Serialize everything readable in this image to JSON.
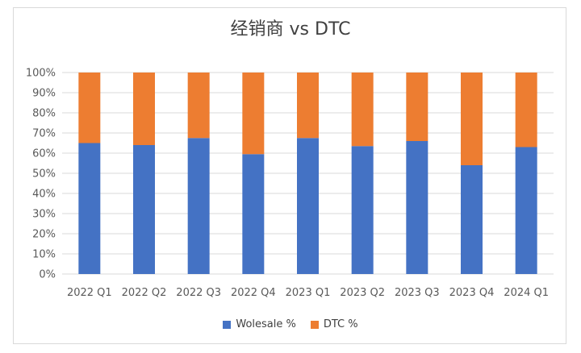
{
  "chart_data": {
    "type": "bar",
    "stacked": "percent",
    "title": "经销商 vs DTC",
    "categories": [
      "2022 Q1",
      "2022 Q2",
      "2022 Q3",
      "2022 Q4",
      "2023 Q1",
      "2023 Q2",
      "2023 Q3",
      "2023 Q4",
      "2024 Q1"
    ],
    "y_ticks": [
      "0%",
      "10%",
      "20%",
      "30%",
      "40%",
      "50%",
      "60%",
      "70%",
      "80%",
      "90%",
      "100%"
    ],
    "ylim": [
      0,
      100
    ],
    "grid": true,
    "legend_position": "bottom",
    "series": [
      {
        "name": "Wolesale %",
        "color": "#4472c4",
        "values": [
          65,
          64,
          67.5,
          59.5,
          67.5,
          63.5,
          66,
          54,
          63
        ]
      },
      {
        "name": "DTC %",
        "color": "#ed7d31",
        "values": [
          35,
          36,
          32.5,
          40.5,
          32.5,
          36.5,
          34,
          46,
          37
        ]
      }
    ]
  }
}
